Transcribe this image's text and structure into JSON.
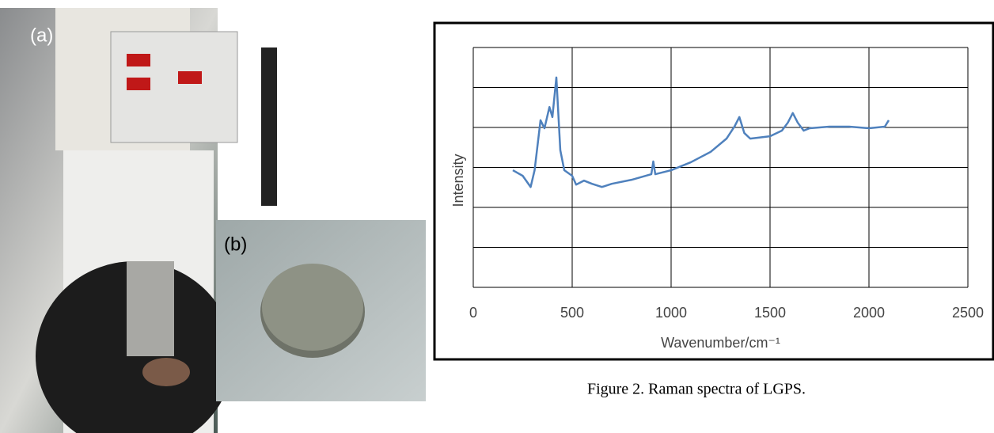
{
  "panels": {
    "a": "(a)",
    "b": "(b)"
  },
  "caption": "Figure 2. Raman spectra of LGPS.",
  "chart_data": {
    "type": "line",
    "x_label": "Wavenumber/cm⁻¹",
    "y_label": "Intensity",
    "xlim": [
      0,
      2500
    ],
    "xticks": [
      0,
      500,
      1000,
      1500,
      2000,
      2500
    ],
    "ylim": [
      0,
      6
    ],
    "yticks": [
      0,
      1,
      2,
      3,
      4,
      5,
      6
    ],
    "ytick_labels": false,
    "grid": true,
    "series": [
      {
        "color": "#4f81bd",
        "x": [
          200,
          250,
          290,
          310,
          340,
          360,
          385,
          400,
          420,
          440,
          460,
          500,
          520,
          560,
          600,
          650,
          700,
          800,
          900,
          910,
          920,
          1000,
          1100,
          1200,
          1280,
          1320,
          1345,
          1370,
          1400,
          1500,
          1560,
          1590,
          1615,
          1640,
          1670,
          1700,
          1800,
          1900,
          2000,
          2080,
          2100
        ],
        "values": [
          2.93,
          2.79,
          2.51,
          2.93,
          4.18,
          3.98,
          4.51,
          4.26,
          5.25,
          3.43,
          2.93,
          2.79,
          2.57,
          2.67,
          2.59,
          2.51,
          2.59,
          2.69,
          2.83,
          3.15,
          2.83,
          2.93,
          3.13,
          3.39,
          3.72,
          4.02,
          4.26,
          3.86,
          3.72,
          3.78,
          3.92,
          4.12,
          4.36,
          4.12,
          3.92,
          3.98,
          4.02,
          4.02,
          3.98,
          4.02,
          4.18
        ]
      }
    ]
  }
}
